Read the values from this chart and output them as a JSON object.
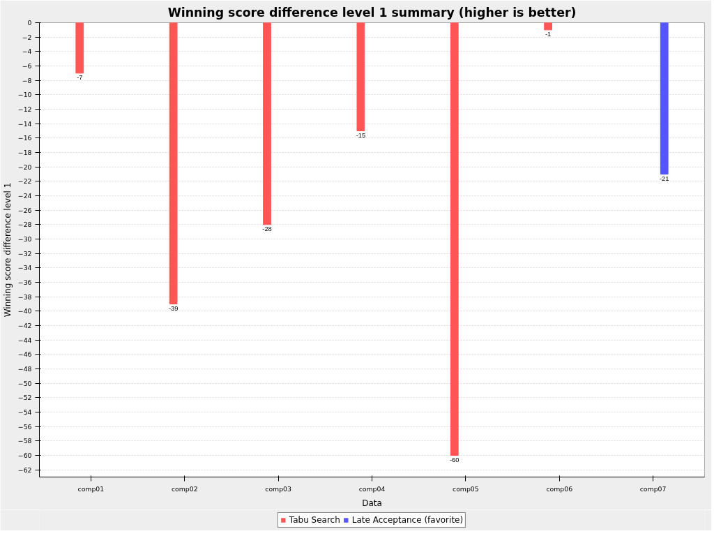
{
  "chart_data": {
    "type": "bar",
    "title": "Winning score difference level 1 summary (higher is better)",
    "xlabel": "Data",
    "ylabel": "Winning score difference level 1",
    "categories": [
      "comp01",
      "comp02",
      "comp03",
      "comp04",
      "comp05",
      "comp06",
      "comp07"
    ],
    "series": [
      {
        "name": "Tabu Search",
        "color": "#ff5555",
        "values": [
          -7,
          -39,
          -28,
          -15,
          -60,
          -1,
          null
        ]
      },
      {
        "name": "Late Acceptance (favorite)",
        "color": "#5555ff",
        "values": [
          null,
          null,
          null,
          null,
          null,
          null,
          -21
        ]
      }
    ],
    "ylim": [
      -63,
      0
    ],
    "yticks": [
      0,
      -2,
      -4,
      -6,
      -8,
      -10,
      -12,
      -14,
      -16,
      -18,
      -20,
      -22,
      -24,
      -26,
      -28,
      -30,
      -32,
      -34,
      -36,
      -38,
      -40,
      -42,
      -44,
      -46,
      -48,
      -50,
      -52,
      -54,
      -56,
      -58,
      -60,
      -62
    ],
    "data_labels": true,
    "grid": "y",
    "legend": "bottom"
  }
}
